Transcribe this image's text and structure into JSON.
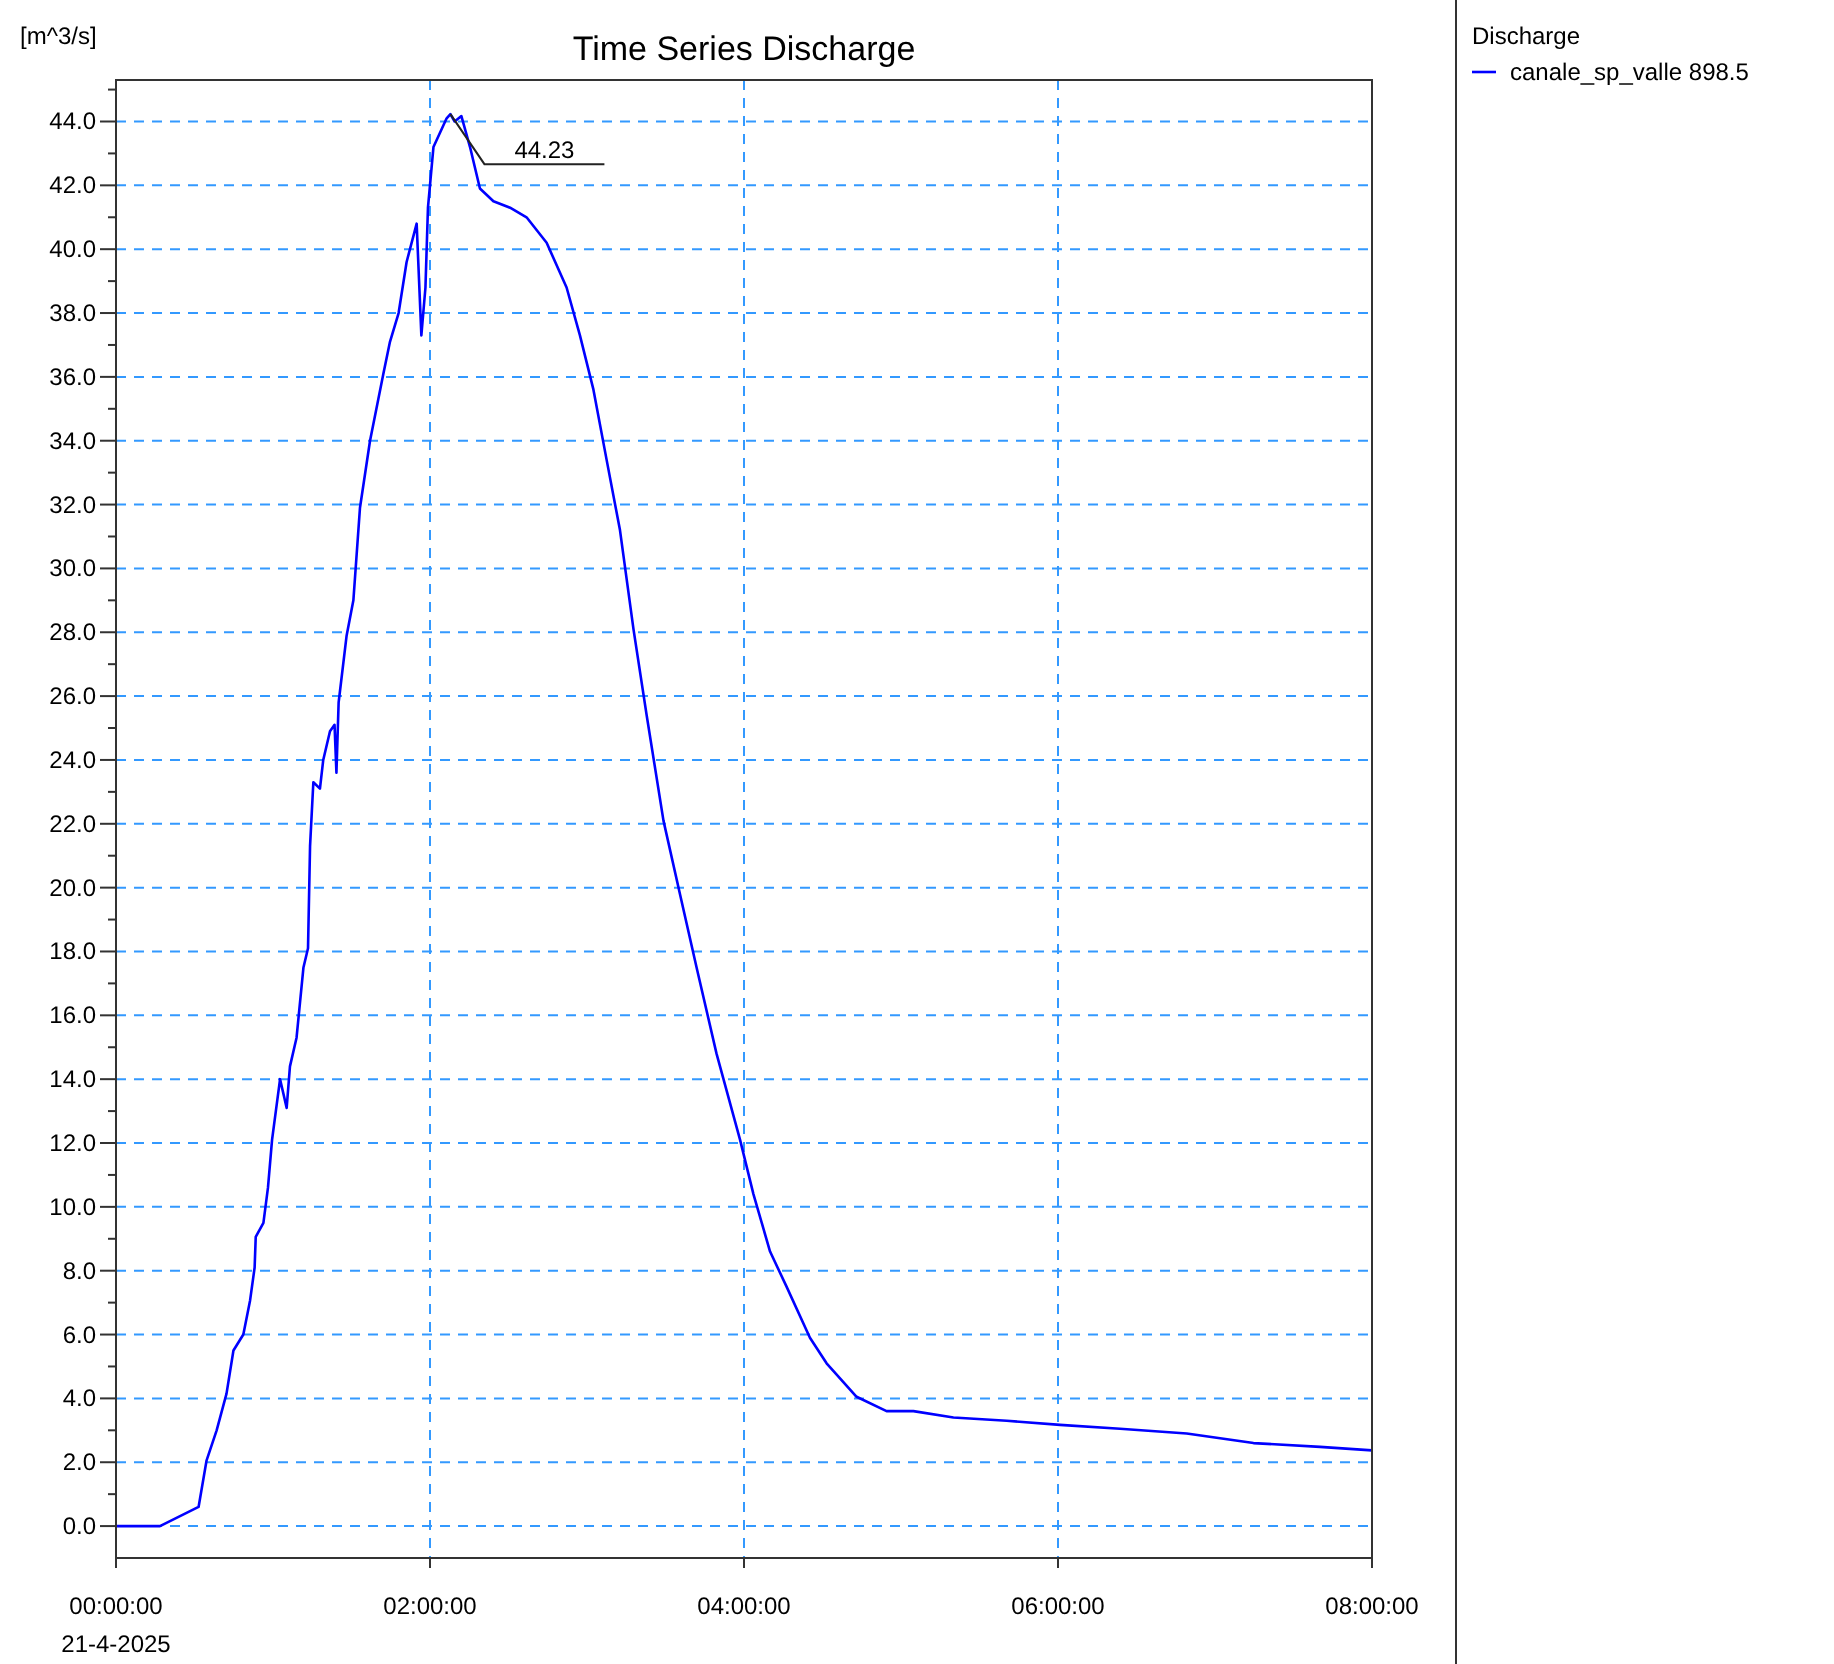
{
  "chart_data": {
    "type": "line",
    "title": "Time Series Discharge",
    "ylabel": "[m^3/s]",
    "xlabel": "21-4-2025",
    "legend_title": "Discharge",
    "legend": "top right",
    "grid": true,
    "marker": "none",
    "line_style": "solid",
    "xlim": [
      0,
      8
    ],
    "xticks": [
      {
        "value": 0,
        "label": "00:00:00"
      },
      {
        "value": 2,
        "label": "02:00:00"
      },
      {
        "value": 4,
        "label": "04:00:00"
      },
      {
        "value": 6,
        "label": "06:00:00"
      },
      {
        "value": 8,
        "label": "08:00:00"
      }
    ],
    "ylim": [
      -1,
      45.3
    ],
    "yticks": [
      {
        "value": 0,
        "label": "0.0"
      },
      {
        "value": 1,
        "label": null
      },
      {
        "value": 2,
        "label": "2.0"
      },
      {
        "value": 3,
        "label": null
      },
      {
        "value": 4,
        "label": "4.0"
      },
      {
        "value": 5,
        "label": null
      },
      {
        "value": 6,
        "label": "6.0"
      },
      {
        "value": 7,
        "label": null
      },
      {
        "value": 8,
        "label": "8.0"
      },
      {
        "value": 9,
        "label": null
      },
      {
        "value": 10,
        "label": "10.0"
      },
      {
        "value": 11,
        "label": null
      },
      {
        "value": 12,
        "label": "12.0"
      },
      {
        "value": 13,
        "label": null
      },
      {
        "value": 14,
        "label": "14.0"
      },
      {
        "value": 15,
        "label": null
      },
      {
        "value": 16,
        "label": "16.0"
      },
      {
        "value": 17,
        "label": null
      },
      {
        "value": 18,
        "label": "18.0"
      },
      {
        "value": 19,
        "label": null
      },
      {
        "value": 20,
        "label": "20.0"
      },
      {
        "value": 21,
        "label": null
      },
      {
        "value": 22,
        "label": "22.0"
      },
      {
        "value": 23,
        "label": null
      },
      {
        "value": 24,
        "label": "24.0"
      },
      {
        "value": 25,
        "label": null
      },
      {
        "value": 26,
        "label": "26.0"
      },
      {
        "value": 27,
        "label": null
      },
      {
        "value": 28,
        "label": "28.0"
      },
      {
        "value": 29,
        "label": null
      },
      {
        "value": 30,
        "label": "30.0"
      },
      {
        "value": 31,
        "label": null
      },
      {
        "value": 32,
        "label": "32.0"
      },
      {
        "value": 33,
        "label": null
      },
      {
        "value": 34,
        "label": "34.0"
      },
      {
        "value": 35,
        "label": null
      },
      {
        "value": 36,
        "label": "36.0"
      },
      {
        "value": 37,
        "label": null
      },
      {
        "value": 38,
        "label": "38.0"
      },
      {
        "value": 39,
        "label": null
      },
      {
        "value": 40,
        "label": "40.0"
      },
      {
        "value": 41,
        "label": null
      },
      {
        "value": 42,
        "label": "42.0"
      },
      {
        "value": 43,
        "label": null
      },
      {
        "value": 44,
        "label": "44.0"
      },
      {
        "value": 45,
        "label": null
      }
    ],
    "annotations": [
      {
        "text": "44.23",
        "x": 2.13,
        "y": 44.23
      }
    ],
    "series": [
      {
        "name": "canale_sp_valle 898.5",
        "color": "#0000ff",
        "x": [
          0,
          0.28,
          0.526,
          0.577,
          0.641,
          0.704,
          0.748,
          0.811,
          0.854,
          0.883,
          0.89,
          0.939,
          0.968,
          0.994,
          1.045,
          1.087,
          1.108,
          1.15,
          1.194,
          1.223,
          1.236,
          1.257,
          1.299,
          1.32,
          1.363,
          1.392,
          1.404,
          1.418,
          1.469,
          1.512,
          1.554,
          1.618,
          1.703,
          1.745,
          1.8,
          1.851,
          1.915,
          1.945,
          1.971,
          1.987,
          2.022,
          2.106,
          2.13,
          2.157,
          2.2,
          2.255,
          2.318,
          2.404,
          2.51,
          2.615,
          2.743,
          2.87,
          2.955,
          3.041,
          3.125,
          3.21,
          3.296,
          3.38,
          3.487,
          3.592,
          3.698,
          3.825,
          3.975,
          4.06,
          4.166,
          4.271,
          4.42,
          4.526,
          4.717,
          4.908,
          5.079,
          5.334,
          5.673,
          6.013,
          6.395,
          6.82,
          7.245,
          7.669,
          8
        ],
        "values": [
          0,
          0,
          0.6,
          2.06,
          3.0,
          4.15,
          5.5,
          6.0,
          7.07,
          8.1,
          9.06,
          9.5,
          10.6,
          12.1,
          14.0,
          13.1,
          14.4,
          15.3,
          17.5,
          18.1,
          21.3,
          23.3,
          23.1,
          24.0,
          24.9,
          25.1,
          23.6,
          25.8,
          27.9,
          29.0,
          31.9,
          34.0,
          36.1,
          37.1,
          38.0,
          39.6,
          40.8,
          37.3,
          38.8,
          41.3,
          43.2,
          44.1,
          44.23,
          44.0,
          44.17,
          43.2,
          41.9,
          41.5,
          41.3,
          41.0,
          40.2,
          38.8,
          37.3,
          35.6,
          33.4,
          31.2,
          28.1,
          25.4,
          22.1,
          19.8,
          17.5,
          14.8,
          12.1,
          10.4,
          8.6,
          7.5,
          5.9,
          5.1,
          4.05,
          3.6,
          3.6,
          3.4,
          3.3,
          3.17,
          3.05,
          2.9,
          2.6,
          2.48,
          2.37
        ]
      }
    ]
  }
}
